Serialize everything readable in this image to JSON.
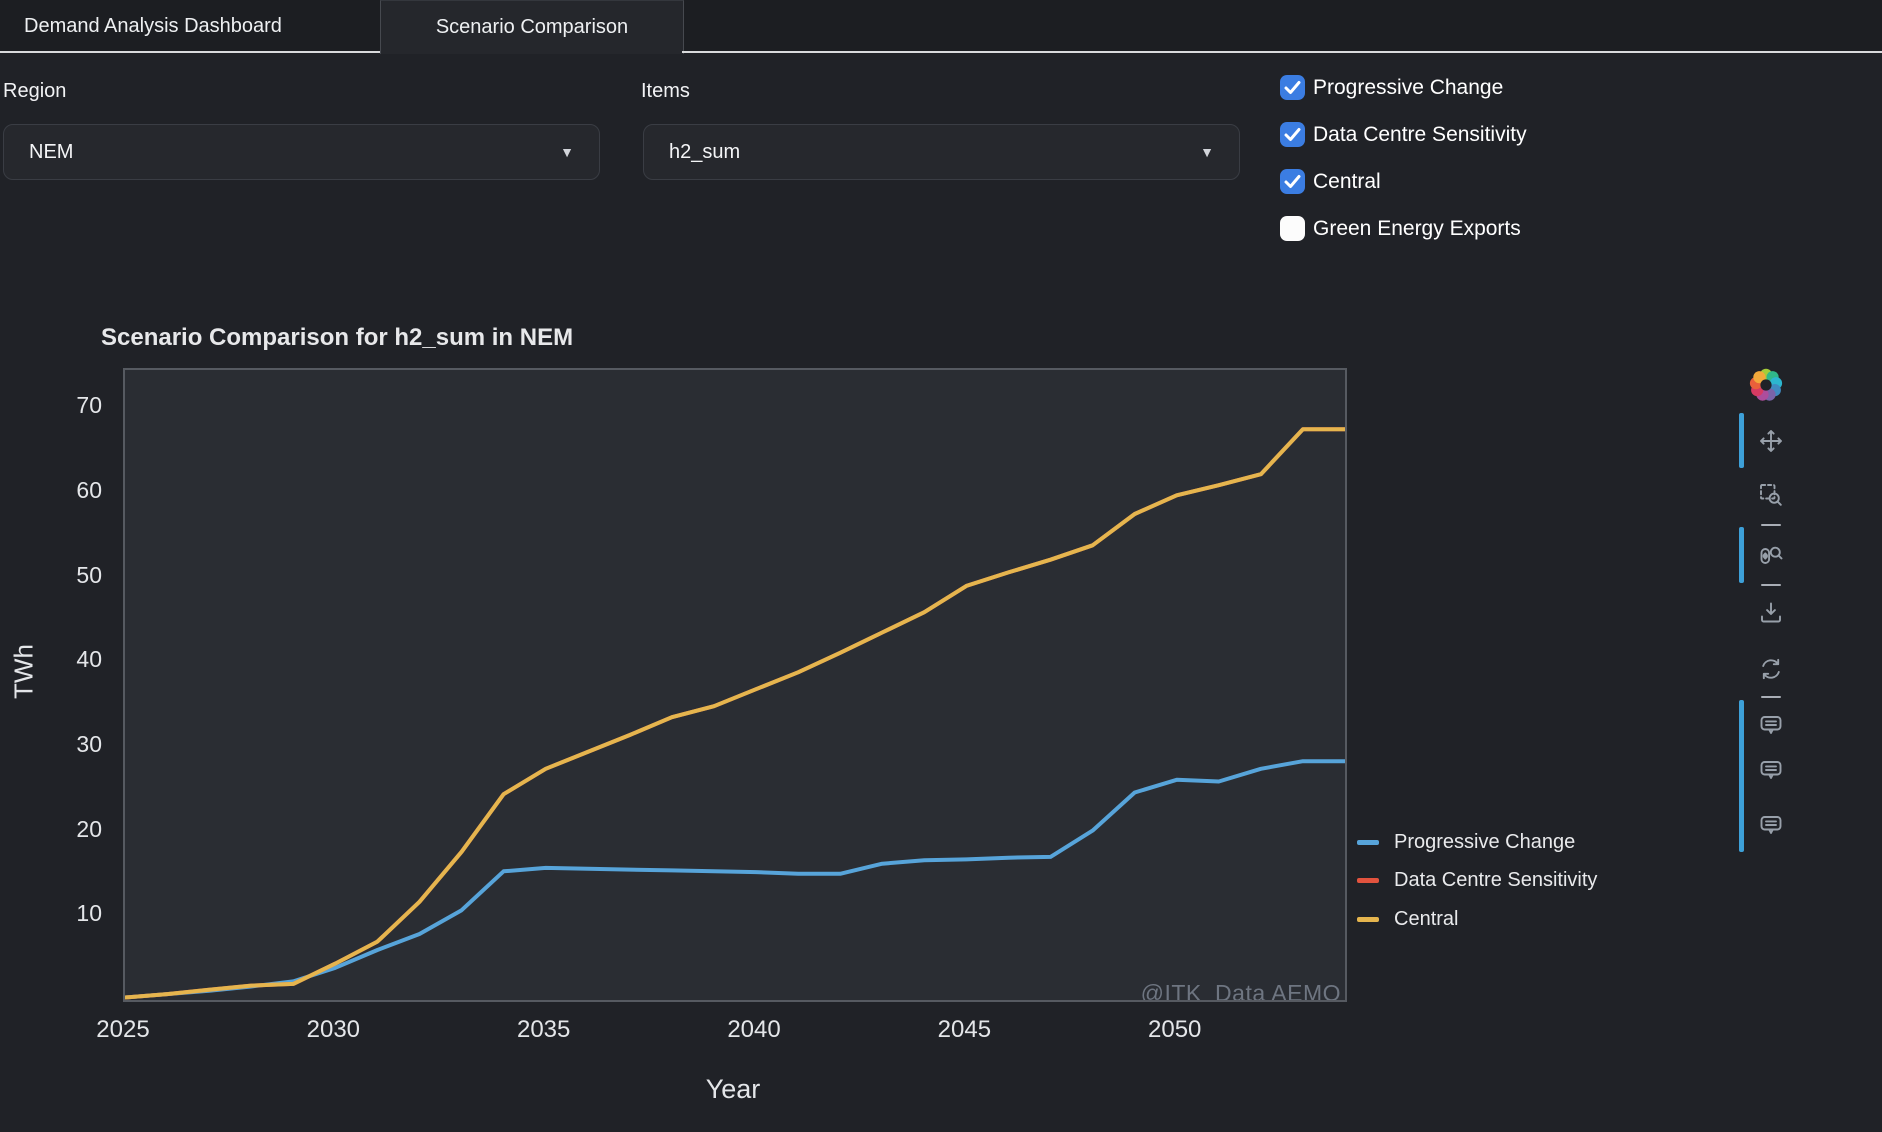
{
  "tabs": [
    {
      "label": "Demand Analysis Dashboard",
      "active": false
    },
    {
      "label": "Scenario Comparison",
      "active": true
    }
  ],
  "filters": {
    "region": {
      "label": "Region",
      "value": "NEM"
    },
    "items": {
      "label": "Items",
      "value": "h2_sum"
    }
  },
  "scenario_checkboxes": [
    {
      "label": "Progressive Change",
      "checked": true
    },
    {
      "label": "Data Centre Sensitivity",
      "checked": true
    },
    {
      "label": "Central",
      "checked": true
    },
    {
      "label": "Green Energy Exports",
      "checked": false
    }
  ],
  "colors": {
    "checkbox_accent": "#3b7de2",
    "toolbar_active_bar": "#3da0d8",
    "progressive_change": "#57a4da",
    "data_centre_sensitivity": "#e2533e",
    "central": "#e5b54e"
  },
  "chart_data": {
    "type": "line",
    "title": "Scenario Comparison for h2_sum in NEM",
    "xlabel": "Year",
    "ylabel": "TWh",
    "xlim": [
      2025,
      2054
    ],
    "ylim": [
      0,
      74.4
    ],
    "xticks": [
      2025,
      2030,
      2035,
      2040,
      2045,
      2050
    ],
    "yticks": [
      10,
      20,
      30,
      40,
      50,
      60,
      70
    ],
    "grid": false,
    "legend_position": "right-of-plot",
    "watermark": "@ITK_Data AEMO",
    "x": [
      2025,
      2026,
      2027,
      2028,
      2029,
      2030,
      2031,
      2032,
      2033,
      2034,
      2035,
      2036,
      2037,
      2038,
      2039,
      2040,
      2041,
      2042,
      2043,
      2044,
      2045,
      2046,
      2047,
      2048,
      2049,
      2050,
      2051,
      2052,
      2053,
      2054
    ],
    "series": [
      {
        "name": "Progressive Change",
        "color": "#57a4da",
        "values": [
          0.3,
          0.7,
          1.1,
          1.6,
          2.2,
          3.8,
          5.9,
          7.8,
          10.6,
          15.2,
          15.6,
          15.5,
          15.4,
          15.3,
          15.2,
          15.1,
          14.9,
          14.9,
          16.1,
          16.5,
          16.6,
          16.8,
          16.9,
          20.0,
          24.5,
          26.0,
          25.8,
          27.3,
          28.2,
          28.2
        ]
      },
      {
        "name": "Data Centre Sensitivity",
        "color": "#e2533e",
        "hidden_behind": "Central",
        "values": [
          0.3,
          0.7,
          1.2,
          1.7,
          1.9,
          4.3,
          6.9,
          11.6,
          17.5,
          24.3,
          27.3,
          29.3,
          31.3,
          33.4,
          34.7,
          36.7,
          38.7,
          41.0,
          43.4,
          45.8,
          48.9,
          50.5,
          52.0,
          53.7,
          57.4,
          59.6,
          60.8,
          62.1,
          67.4,
          67.4
        ]
      },
      {
        "name": "Central",
        "color": "#e5b54e",
        "values": [
          0.3,
          0.7,
          1.2,
          1.7,
          1.9,
          4.3,
          6.9,
          11.6,
          17.5,
          24.3,
          27.3,
          29.3,
          31.3,
          33.4,
          34.7,
          36.7,
          38.7,
          41.0,
          43.4,
          45.8,
          48.9,
          50.5,
          52.0,
          53.7,
          57.4,
          59.6,
          60.8,
          62.1,
          67.4,
          67.4
        ]
      }
    ]
  },
  "toolbar": {
    "logo": "bokeh-logo",
    "tools": [
      {
        "icon": "pan-icon",
        "active": true
      },
      {
        "icon": "box-zoom-icon",
        "active": false
      },
      {
        "icon": "wheel-zoom-icon",
        "active": true
      },
      {
        "icon": "save-icon",
        "active": false
      },
      {
        "icon": "reset-icon",
        "active": false
      },
      {
        "icon": "hover-icon",
        "active": true
      },
      {
        "icon": "hover-icon",
        "active": true
      },
      {
        "icon": "hover-icon",
        "active": true
      }
    ]
  }
}
